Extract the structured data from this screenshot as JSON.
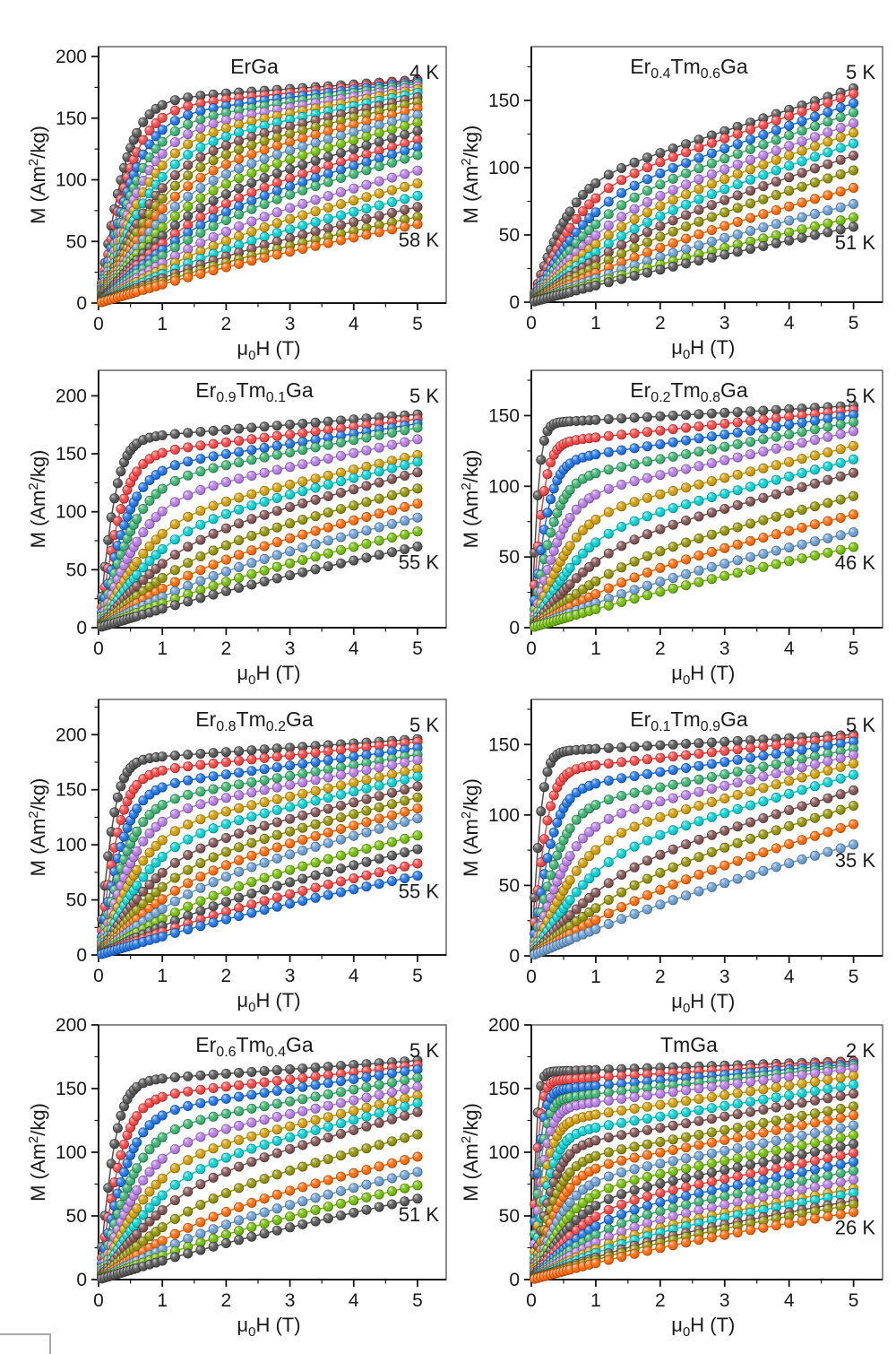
{
  "page": {
    "background": "#ffffff"
  },
  "palette": [
    "#515151",
    "#F14040",
    "#1A6FDF",
    "#37AD6B",
    "#B177DE",
    "#CC9900",
    "#00CBCC",
    "#7D4E4E",
    "#8E8E00",
    "#FB6501",
    "#6699CC",
    "#6FB802"
  ],
  "palette_names": [
    "dark-gray",
    "red",
    "blue",
    "green",
    "purple",
    "dark-yellow",
    "cyan",
    "brown",
    "olive",
    "orange",
    "steel-blue",
    "bright-green"
  ],
  "figure": {
    "xlabel_plain": "μ0H (T)",
    "ylabel_plain": "M (Am2/kg)",
    "xlabel_segments": [
      {
        "text": "μ"
      },
      {
        "sub": "0"
      },
      {
        "text": "H (T)"
      }
    ],
    "ylabel_segments": [
      {
        "text": "M (Am"
      },
      {
        "sup": "2"
      },
      {
        "text": "/kg)"
      }
    ]
  },
  "chart_data": [
    {
      "type": "line",
      "title_plain": "ErGa",
      "title_segments": [
        {
          "text": "ErGa"
        }
      ],
      "temp_first_label": "4 K",
      "temp_last_label": "58 K",
      "temperatures_K": {
        "first": 4,
        "last": 58,
        "count": 22
      },
      "xlim": [
        0,
        5.45
      ],
      "ylim": [
        0,
        208
      ],
      "xticks": [
        0,
        1,
        2,
        3,
        4,
        5
      ],
      "yticks": [
        0,
        50,
        100,
        150,
        200
      ],
      "x_minor_step": 0.5,
      "y_minor_step": 25,
      "x_field_T": [
        0,
        5
      ],
      "M_at_5T": [
        181,
        180.5,
        179.5,
        178,
        176,
        173.5,
        170.5,
        167,
        163,
        158,
        152.5,
        146.5,
        139.5,
        132.5,
        126.5,
        120,
        107.5,
        97,
        87,
        78,
        70,
        64
      ],
      "shape": {
        "h0_first": 0.5,
        "h0_last": 2.6,
        "lin_first": 0.1,
        "lin_last": 0.8,
        "hc_max": 0
      }
    },
    {
      "type": "line",
      "title_plain": "Er0.4Tm0.6Ga",
      "title_segments": [
        {
          "text": "Er"
        },
        {
          "sub": "0.4"
        },
        {
          "text": "Tm"
        },
        {
          "sub": "0.6"
        },
        {
          "text": "Ga"
        }
      ],
      "temp_first_label": "5 K",
      "temp_last_label": "51 K",
      "temperatures_K": {
        "first": 5,
        "last": 51,
        "count": 13
      },
      "xlim": [
        0,
        5.45
      ],
      "ylim": [
        0,
        190
      ],
      "xticks": [
        0,
        1,
        2,
        3,
        4,
        5
      ],
      "yticks": [
        0,
        50,
        100,
        150
      ],
      "x_minor_step": 0.5,
      "y_minor_step": 25,
      "x_field_T": [
        0,
        5
      ],
      "M_at_5T": [
        159,
        155,
        148,
        141,
        133,
        126,
        118,
        109,
        98,
        85,
        73,
        63,
        56
      ],
      "shape": {
        "h0_first": 0.65,
        "h0_last": 2.8,
        "lin_first": 0.5,
        "lin_last": 0.87,
        "hc_max": 0
      }
    },
    {
      "type": "line",
      "title_plain": "Er0.9Tm0.1Ga",
      "title_segments": [
        {
          "text": "Er"
        },
        {
          "sub": "0.9"
        },
        {
          "text": "Tm"
        },
        {
          "sub": "0.1"
        },
        {
          "text": "Ga"
        }
      ],
      "temp_first_label": "5 K",
      "temp_last_label": "55 K",
      "temperatures_K": {
        "first": 5,
        "last": 55,
        "count": 13
      },
      "xlim": [
        0,
        5.45
      ],
      "ylim": [
        0,
        222
      ],
      "xticks": [
        0,
        1,
        2,
        3,
        4,
        5
      ],
      "yticks": [
        0,
        50,
        100,
        150,
        200
      ],
      "x_minor_step": 0.5,
      "y_minor_step": 25,
      "x_field_T": [
        0,
        5
      ],
      "M_at_5T": [
        184,
        180,
        176,
        172.5,
        162.5,
        149,
        143,
        134,
        120,
        107,
        95,
        83,
        70
      ],
      "shape": {
        "h0_first": 0.3,
        "h0_last": 2.6,
        "lin_first": 0.12,
        "lin_last": 0.82,
        "hc_max": 0
      }
    },
    {
      "type": "line",
      "title_plain": "Er0.2Tm0.8Ga",
      "title_segments": [
        {
          "text": "Er"
        },
        {
          "sub": "0.2"
        },
        {
          "text": "Tm"
        },
        {
          "sub": "0.8"
        },
        {
          "text": "Ga"
        }
      ],
      "temp_first_label": "5 K",
      "temp_last_label": "46 K",
      "temperatures_K": {
        "first": 5,
        "last": 46,
        "count": 12
      },
      "xlim": [
        0,
        5.45
      ],
      "ylim": [
        0,
        182
      ],
      "xticks": [
        0,
        1,
        2,
        3,
        4,
        5
      ],
      "yticks": [
        0,
        50,
        100,
        150
      ],
      "x_minor_step": 0.5,
      "y_minor_step": 25,
      "x_field_T": [
        0,
        5
      ],
      "M_at_5T": [
        157,
        154,
        150.5,
        145.5,
        139,
        128.5,
        119,
        109.5,
        93,
        80,
        67.5,
        57
      ],
      "shape": {
        "h0_first": 0.13,
        "h0_last": 2.4,
        "lin_first": 0.08,
        "lin_last": 0.84,
        "hc_max": 0.25
      }
    },
    {
      "type": "line",
      "title_plain": "Er0.8Tm0.2Ga",
      "title_segments": [
        {
          "text": "Er"
        },
        {
          "sub": "0.8"
        },
        {
          "text": "Tm"
        },
        {
          "sub": "0.2"
        },
        {
          "text": "Ga"
        }
      ],
      "temp_first_label": "5 K",
      "temp_last_label": "55 K",
      "temperatures_K": {
        "first": 5,
        "last": 55,
        "count": 15
      },
      "xlim": [
        0,
        5.45
      ],
      "ylim": [
        0,
        232
      ],
      "xticks": [
        0,
        1,
        2,
        3,
        4,
        5
      ],
      "yticks": [
        0,
        50,
        100,
        150,
        200
      ],
      "x_minor_step": 0.5,
      "y_minor_step": 25,
      "x_field_T": [
        0,
        5
      ],
      "M_at_5T": [
        196,
        193.5,
        188,
        182,
        177,
        169,
        162,
        153,
        143,
        133,
        124,
        108.5,
        96,
        83,
        72
      ],
      "shape": {
        "h0_first": 0.27,
        "h0_last": 2.6,
        "lin_first": 0.1,
        "lin_last": 0.82,
        "hc_max": 0
      }
    },
    {
      "type": "line",
      "title_plain": "Er0.1Tm0.9Ga",
      "title_segments": [
        {
          "text": "Er"
        },
        {
          "sub": "0.1"
        },
        {
          "text": "Tm"
        },
        {
          "sub": "0.9"
        },
        {
          "text": "Ga"
        }
      ],
      "temp_first_label": "5 K",
      "temp_last_label": "35 K",
      "temperatures_K": {
        "first": 5,
        "last": 35,
        "count": 11
      },
      "xlim": [
        0,
        5.45
      ],
      "ylim": [
        0,
        182
      ],
      "xticks": [
        0,
        1,
        2,
        3,
        4,
        5
      ],
      "yticks": [
        0,
        50,
        100,
        150
      ],
      "x_minor_step": 0.5,
      "y_minor_step": 25,
      "x_field_T": [
        0,
        5
      ],
      "M_at_5T": [
        157,
        155.5,
        152,
        147,
        142.5,
        136.5,
        128.5,
        117.5,
        106.5,
        93.5,
        79
      ],
      "shape": {
        "h0_first": 0.17,
        "h0_last": 2.3,
        "lin_first": 0.08,
        "lin_last": 0.8,
        "hc_max": 0.2
      }
    },
    {
      "type": "line",
      "title_plain": "Er0.6Tm0.4Ga",
      "title_segments": [
        {
          "text": "Er"
        },
        {
          "sub": "0.6"
        },
        {
          "text": "Tm"
        },
        {
          "sub": "0.4"
        },
        {
          "text": "Ga"
        }
      ],
      "temp_first_label": "5 K",
      "temp_last_label": "51 K",
      "temperatures_K": {
        "first": 5,
        "last": 51,
        "count": 13
      },
      "xlim": [
        0,
        5.45
      ],
      "ylim": [
        0,
        200
      ],
      "xticks": [
        0,
        1,
        2,
        3,
        4,
        5
      ],
      "yticks": [
        0,
        50,
        100,
        150,
        200
      ],
      "x_minor_step": 0.5,
      "y_minor_step": 25,
      "x_field_T": [
        0,
        5
      ],
      "M_at_5T": [
        172,
        168.5,
        165,
        158.5,
        151.5,
        144.5,
        138.5,
        131.5,
        114,
        96.5,
        84.5,
        74,
        63.5
      ],
      "shape": {
        "h0_first": 0.3,
        "h0_last": 2.6,
        "lin_first": 0.1,
        "lin_last": 0.82,
        "hc_max": 0
      }
    },
    {
      "type": "line",
      "title_plain": "TmGa",
      "title_segments": [
        {
          "text": "TmGa"
        }
      ],
      "temp_first_label": "2 K",
      "temp_last_label": "26 K",
      "temperatures_K": {
        "first": 2,
        "last": 26,
        "count": 22
      },
      "xlim": [
        0,
        5.45
      ],
      "ylim": [
        0,
        200
      ],
      "xticks": [
        0,
        1,
        2,
        3,
        4,
        5
      ],
      "yticks": [
        0,
        50,
        100,
        150,
        200
      ],
      "x_minor_step": 0.5,
      "y_minor_step": 25,
      "x_field_T": [
        0,
        5
      ],
      "M_at_5T": [
        171.5,
        171,
        169.5,
        168,
        166,
        160,
        153,
        146,
        136,
        129,
        121,
        113.5,
        106.5,
        99.5,
        92.5,
        85.5,
        78.5,
        71.5,
        68,
        62,
        59,
        53
      ],
      "shape": {
        "h0_first": 0.09,
        "h0_last": 2.2,
        "lin_first": 0.05,
        "lin_last": 0.78,
        "hc_max": 0.3
      }
    }
  ]
}
